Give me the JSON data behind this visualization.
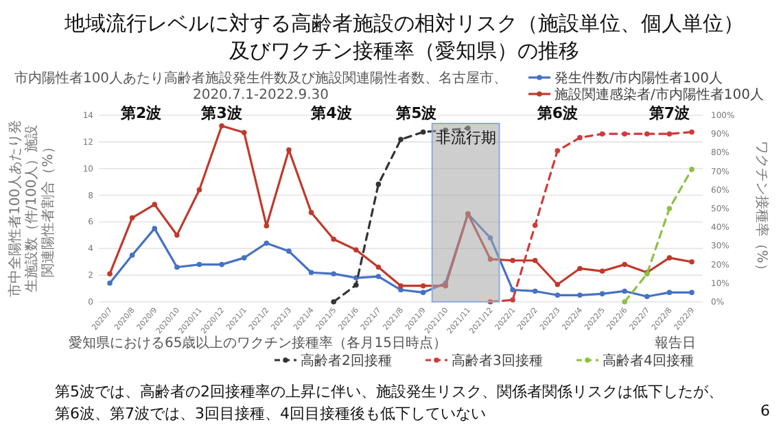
{
  "chart_data": {
    "type": "line",
    "title": "地域流行レベルに対する高齢者施設の相対リスク（施設単位、個人単位）及びワクチン接種率（愛知県）の推移",
    "subtitle": "市内陽性者100人あたり高齢者施設発生件数及び施設関連陽性者数、名古屋市、\n2020.7.1-2022.9.30",
    "ylabel": "市中全陽性者100人あたり発生施設数（件/100人）施設関連陽性者割合（%）",
    "y2label": "ワクチン接種率（%）",
    "xlabel": "報告日",
    "categories": [
      "2020/7",
      "2020/8",
      "2020/9",
      "2020/10",
      "2020/11",
      "2020/12",
      "2021/1",
      "2021/2",
      "2021/3",
      "2021/4",
      "2021/5",
      "2021/6",
      "2021/7",
      "2021/8",
      "2021/9",
      "2021/10",
      "2021/11",
      "2021/12",
      "2022/1",
      "2022/2",
      "2022/3",
      "2022/4",
      "2022/5",
      "2022/6",
      "2022/7",
      "2022/8",
      "2022/9"
    ],
    "series": [
      {
        "name": "発生件数/市内陽性者100人",
        "color": "#4472c4",
        "values": [
          1.4,
          3.5,
          5.5,
          2.6,
          2.8,
          2.8,
          3.3,
          4.4,
          3.8,
          2.2,
          2.1,
          1.8,
          1.9,
          0.9,
          0.7,
          1.4,
          6.6,
          4.8,
          0.9,
          0.8,
          0.5,
          0.5,
          0.6,
          0.8,
          0.4,
          0.7,
          0.7
        ]
      },
      {
        "name": "施設関連感染者/市内陽性者100人",
        "color": "#c0392b",
        "values": [
          2.1,
          6.3,
          7.3,
          5.0,
          8.4,
          13.2,
          12.7,
          5.7,
          11.4,
          6.7,
          4.7,
          3.9,
          2.6,
          1.2,
          1.2,
          1.2,
          6.6,
          3.2,
          3.1,
          3.1,
          1.3,
          2.5,
          2.3,
          2.8,
          2.2,
          3.3,
          3.0
        ]
      },
      {
        "name": "高齢者2回接種",
        "color": "#333333",
        "axis": "y2",
        "line_style": "dashed",
        "values": [
          null,
          null,
          null,
          null,
          null,
          null,
          null,
          null,
          null,
          null,
          0,
          9,
          63,
          87,
          91,
          92,
          93,
          null,
          null,
          null,
          null,
          null,
          null,
          null,
          null,
          null,
          null
        ]
      },
      {
        "name": "高齢者3回接種",
        "color": "#d03a3a",
        "axis": "y2",
        "line_style": "dashed",
        "values": [
          null,
          null,
          null,
          null,
          null,
          null,
          null,
          null,
          null,
          null,
          null,
          null,
          null,
          null,
          null,
          null,
          null,
          0,
          1,
          41,
          81,
          88,
          90,
          90,
          90,
          90,
          91
        ]
      },
      {
        "name": "高齢者4回接種",
        "color": "#8cc043",
        "axis": "y2",
        "line_style": "dashed",
        "values": [
          null,
          null,
          null,
          null,
          null,
          null,
          null,
          null,
          null,
          null,
          null,
          null,
          null,
          null,
          null,
          null,
          null,
          null,
          null,
          null,
          null,
          null,
          null,
          0,
          15,
          50,
          71
        ]
      }
    ],
    "ylim": [
      0,
      14
    ],
    "yticks": [
      0,
      2,
      4,
      6,
      8,
      10,
      12,
      14
    ],
    "y2lim": [
      0,
      100
    ],
    "y2ticks": [
      {
        "value": 0,
        "label": "0%"
      },
      {
        "value": 10,
        "label": "10%"
      },
      {
        "value": 20,
        "label": "20%"
      },
      {
        "value": 30,
        "label": "30%"
      },
      {
        "value": 40,
        "label": "40%"
      },
      {
        "value": 50,
        "label": "50%"
      },
      {
        "value": 60,
        "label": "60%"
      },
      {
        "value": 70,
        "label": "70%"
      },
      {
        "value": 80,
        "label": "80%"
      },
      {
        "value": 90,
        "label": "90%"
      },
      {
        "value": 100,
        "label": "100%"
      }
    ],
    "grid": "y",
    "legend": "bottom right",
    "marker": "circle",
    "bands": [
      {
        "axis": "x",
        "from": "2021/10",
        "to": "2021/12",
        "label": "非流行期",
        "color": "#a6a6a6"
      }
    ],
    "annotations": [
      "第2波",
      "第3波",
      "第4波",
      "第5波",
      "第6波",
      "第7波",
      "愛知県における65歳以上のワクチン接種率（各月15日時点）",
      "第5波では、高齢者の2回接種率の上昇に伴い、施設発生リスク、関係者関係リスクは低下したが、第6波、第7波では、3回目接種、4回目接種後も低下していない",
      "6"
    ]
  }
}
